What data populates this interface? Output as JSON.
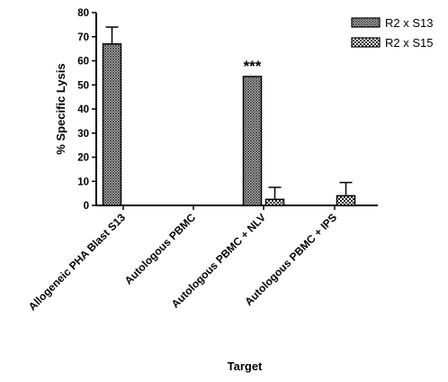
{
  "chart_data": {
    "type": "bar",
    "title": "",
    "xlabel": "Target",
    "ylabel": "% Specific Lysis",
    "ylim": [
      0,
      80
    ],
    "yticks": [
      0,
      10,
      20,
      30,
      40,
      50,
      60,
      70,
      80
    ],
    "categories": [
      "Allogeneic PHA Blast S13",
      "Autologous PBMC",
      "Autologous PBMC + NLV",
      "Autologous PBMC + IPS"
    ],
    "series": [
      {
        "name": "R2 x S13",
        "pattern": "crosshatch-fine",
        "values": [
          67,
          null,
          53.5,
          null
        ],
        "errors": [
          7,
          null,
          0,
          null
        ]
      },
      {
        "name": "R2 x S15",
        "pattern": "checker-coarse",
        "values": [
          null,
          null,
          2.5,
          4
        ],
        "errors": [
          null,
          null,
          5,
          5.5
        ]
      }
    ],
    "annotations": [
      {
        "text": "***",
        "category": "Autologous PBMC + NLV",
        "series": "R2 x S13"
      }
    ],
    "legend": {
      "position": "top-right"
    },
    "grid": false
  }
}
